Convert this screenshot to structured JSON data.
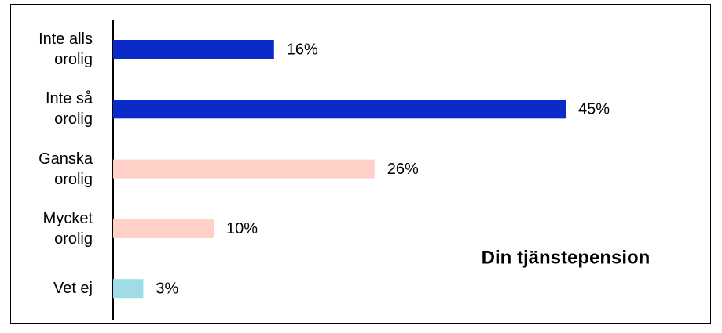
{
  "chart_data": {
    "type": "hbar",
    "title": "Din tjänstepension",
    "categories": [
      "Inte alls\norolig",
      "Inte så\norolig",
      "Ganska\norolig",
      "Mycket\norolig",
      "Vet ej"
    ],
    "values": [
      16,
      45,
      26,
      10,
      3
    ],
    "value_labels": [
      "16%",
      "45%",
      "26%",
      "10%",
      "3%"
    ],
    "colors": [
      "#0a2bc8",
      "#0a2bc8",
      "#ffd0c8",
      "#ffd0c8",
      "#a0dce6"
    ]
  }
}
